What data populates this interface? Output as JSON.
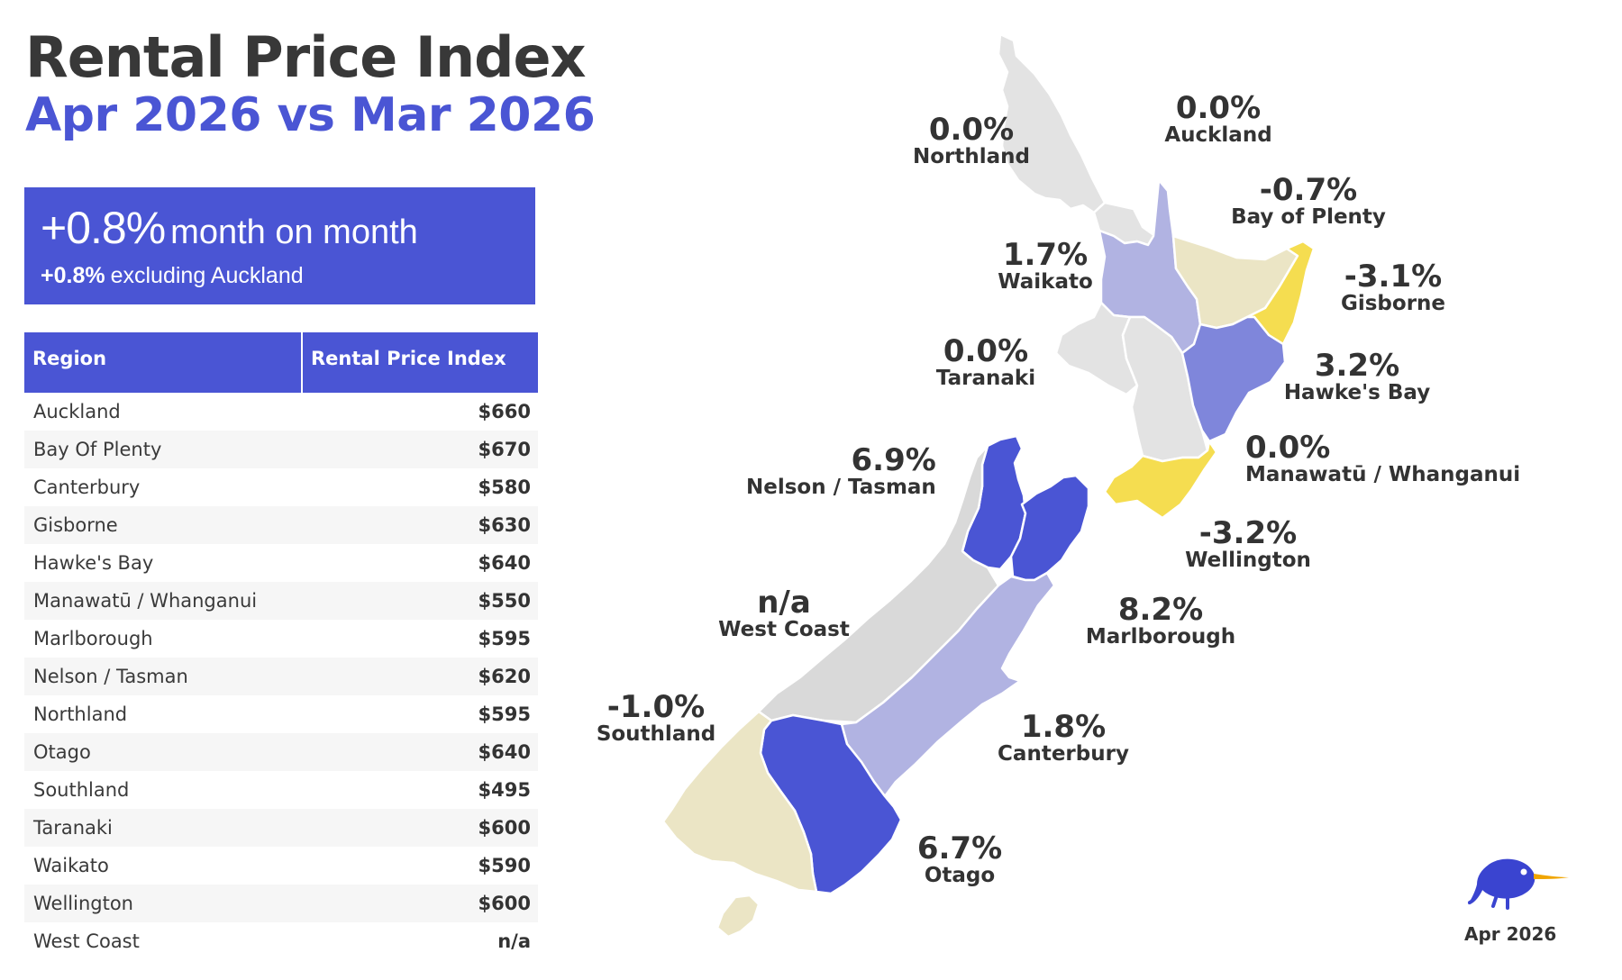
{
  "title": "Rental Price Index",
  "subtitle": "Apr 2026 vs Mar 2026",
  "summary": {
    "headline_value": "+0.8%",
    "headline_text": "month on month",
    "secondary_value": "+0.8%",
    "secondary_text": "excluding Auckland"
  },
  "table": {
    "columns": [
      "Region",
      "Rental Price Index"
    ],
    "rows": [
      {
        "region": "Auckland",
        "index": "$660"
      },
      {
        "region": "Bay Of Plenty",
        "index": "$670"
      },
      {
        "region": "Canterbury",
        "index": "$580"
      },
      {
        "region": "Gisborne",
        "index": "$630"
      },
      {
        "region": "Hawke's Bay",
        "index": "$640"
      },
      {
        "region": "Manawatū / Whanganui",
        "index": "$550"
      },
      {
        "region": "Marlborough",
        "index": "$595"
      },
      {
        "region": "Nelson / Tasman",
        "index": "$620"
      },
      {
        "region": "Northland",
        "index": "$595"
      },
      {
        "region": "Otago",
        "index": "$640"
      },
      {
        "region": "Southland",
        "index": "$495"
      },
      {
        "region": "Taranaki",
        "index": "$600"
      },
      {
        "region": "Waikato",
        "index": "$590"
      },
      {
        "region": "Wellington",
        "index": "$600"
      },
      {
        "region": "West Coast",
        "index": "n/a"
      }
    ]
  },
  "map": {
    "colors": {
      "neutral": "#e3e3e3",
      "light_gray": "#d9d9d9",
      "beige": "#ebe5c5",
      "yellow": "#f5dd50",
      "light_purple": "#b1b3e2",
      "medium_blue": "#7f86db",
      "dark_blue": "#4a55d4"
    },
    "regions": {
      "northland": {
        "pct": "0.0%",
        "name": "Northland"
      },
      "auckland": {
        "pct": "0.0%",
        "name": "Auckland"
      },
      "bay_of_plenty": {
        "pct": "-0.7%",
        "name": "Bay of Plenty"
      },
      "waikato": {
        "pct": "1.7%",
        "name": "Waikato"
      },
      "gisborne": {
        "pct": "-3.1%",
        "name": "Gisborne"
      },
      "taranaki": {
        "pct": "0.0%",
        "name": "Taranaki"
      },
      "hawkes_bay": {
        "pct": "3.2%",
        "name": "Hawke's Bay"
      },
      "nelson_tasman": {
        "pct": "6.9%",
        "name": "Nelson / Tasman"
      },
      "manawatu_whanganui": {
        "pct": "0.0%",
        "name": "Manawatū / Whanganui"
      },
      "wellington": {
        "pct": "-3.2%",
        "name": "Wellington"
      },
      "west_coast": {
        "pct": "n/a",
        "name": "West Coast"
      },
      "marlborough": {
        "pct": "8.2%",
        "name": "Marlborough"
      },
      "southland": {
        "pct": "-1.0%",
        "name": "Southland"
      },
      "canterbury": {
        "pct": "1.8%",
        "name": "Canterbury"
      },
      "otago": {
        "pct": "6.7%",
        "name": "Otago"
      }
    }
  },
  "footer": {
    "logo_icon": "kiwi-bird-icon",
    "date": "Apr 2026"
  }
}
